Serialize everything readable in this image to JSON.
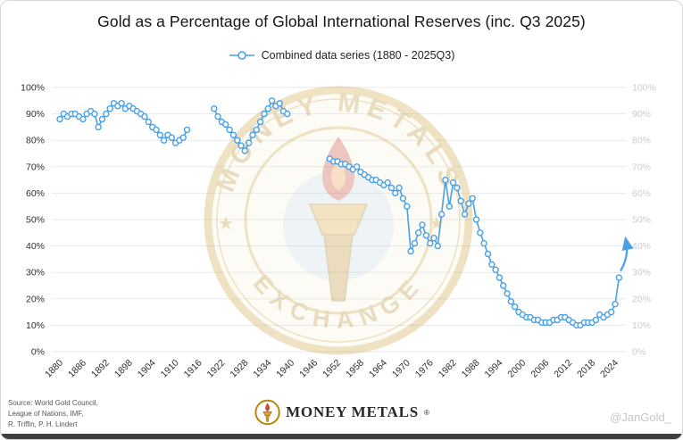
{
  "title": "Gold as a Percentage of Global International Reserves (inc. Q3 2025)",
  "legend": {
    "label": "Combined data series (1880 - 2025Q3)"
  },
  "watermark": {
    "top": "MONEY METALS",
    "bottom": "EXCHANGE",
    "star": "★"
  },
  "footer": {
    "source_lines": [
      "Source: World Gold Council,",
      "League of Nations, IMF,",
      "R. Triffin, P. H. Lindert"
    ],
    "brand": "MONEY METALS",
    "registered": "®",
    "handle": "@JanGold_"
  },
  "chart_data": {
    "type": "line",
    "title": "Gold as a Percentage of Global International Reserves (inc. Q3 2025)",
    "series_name": "Combined data series (1880 - 2025Q3)",
    "color": "#4aa0e6",
    "grid": true,
    "xlim": [
      1878,
      2028
    ],
    "ylim": [
      0,
      100
    ],
    "y_tick_step": 10,
    "y_tick_labels": [
      "0%",
      "10%",
      "20%",
      "30%",
      "40%",
      "50%",
      "60%",
      "70%",
      "80%",
      "90%",
      "100%"
    ],
    "x_ticks": [
      1880,
      1886,
      1892,
      1898,
      1904,
      1910,
      1916,
      1922,
      1928,
      1934,
      1940,
      1946,
      1952,
      1958,
      1964,
      1970,
      1976,
      1982,
      1988,
      1994,
      2000,
      2006,
      2012,
      2018,
      2024
    ],
    "segments": [
      [
        [
          1880,
          88
        ],
        [
          1881,
          90
        ],
        [
          1882,
          89
        ],
        [
          1883,
          90
        ],
        [
          1884,
          90
        ],
        [
          1885,
          89
        ],
        [
          1886,
          88
        ],
        [
          1887,
          90
        ],
        [
          1888,
          91
        ],
        [
          1889,
          90
        ],
        [
          1890,
          85
        ],
        [
          1891,
          88
        ],
        [
          1892,
          90
        ],
        [
          1893,
          92
        ],
        [
          1894,
          94
        ],
        [
          1895,
          93
        ],
        [
          1896,
          94
        ],
        [
          1897,
          92
        ],
        [
          1898,
          93
        ],
        [
          1899,
          92
        ],
        [
          1900,
          91
        ],
        [
          1901,
          90
        ],
        [
          1902,
          89
        ],
        [
          1903,
          87
        ],
        [
          1904,
          85
        ],
        [
          1905,
          84
        ],
        [
          1906,
          82
        ],
        [
          1907,
          80
        ],
        [
          1908,
          82
        ],
        [
          1909,
          81
        ],
        [
          1910,
          79
        ],
        [
          1911,
          80
        ],
        [
          1912,
          81
        ],
        [
          1913,
          84
        ]
      ],
      [
        [
          1920,
          92
        ],
        [
          1921,
          89
        ],
        [
          1922,
          87
        ],
        [
          1923,
          86
        ],
        [
          1924,
          84
        ],
        [
          1925,
          82
        ],
        [
          1926,
          80
        ],
        [
          1927,
          78
        ],
        [
          1928,
          76
        ],
        [
          1929,
          79
        ],
        [
          1930,
          82
        ],
        [
          1931,
          84
        ],
        [
          1932,
          87
        ],
        [
          1933,
          90
        ],
        [
          1934,
          92
        ],
        [
          1935,
          95
        ],
        [
          1936,
          93
        ],
        [
          1937,
          94
        ],
        [
          1938,
          91
        ],
        [
          1939,
          90
        ]
      ],
      [
        [
          1950,
          73
        ],
        [
          1951,
          72
        ],
        [
          1952,
          72
        ],
        [
          1953,
          71
        ],
        [
          1954,
          71
        ],
        [
          1955,
          70
        ],
        [
          1956,
          69
        ],
        [
          1957,
          70
        ],
        [
          1958,
          68
        ],
        [
          1959,
          67
        ],
        [
          1960,
          66
        ],
        [
          1961,
          65
        ],
        [
          1962,
          65
        ],
        [
          1963,
          64
        ],
        [
          1964,
          63
        ],
        [
          1965,
          64
        ],
        [
          1966,
          62
        ],
        [
          1967,
          60
        ],
        [
          1968,
          62
        ],
        [
          1969,
          58
        ],
        [
          1970,
          55
        ],
        [
          1971,
          38
        ],
        [
          1972,
          41
        ],
        [
          1973,
          45
        ],
        [
          1974,
          48
        ],
        [
          1975,
          44
        ],
        [
          1976,
          41
        ],
        [
          1977,
          43
        ],
        [
          1978,
          40
        ],
        [
          1979,
          52
        ],
        [
          1980,
          65
        ],
        [
          1981,
          55
        ],
        [
          1982,
          64
        ],
        [
          1983,
          62
        ],
        [
          1984,
          57
        ],
        [
          1985,
          52
        ],
        [
          1986,
          56
        ],
        [
          1987,
          58
        ],
        [
          1988,
          50
        ],
        [
          1989,
          45
        ],
        [
          1990,
          41
        ],
        [
          1991,
          37
        ],
        [
          1992,
          33
        ],
        [
          1993,
          31
        ],
        [
          1994,
          28
        ],
        [
          1995,
          25
        ],
        [
          1996,
          22
        ],
        [
          1997,
          19
        ],
        [
          1998,
          17
        ],
        [
          1999,
          15
        ],
        [
          2000,
          14
        ],
        [
          2001,
          13
        ],
        [
          2002,
          13
        ],
        [
          2003,
          12
        ],
        [
          2004,
          12
        ],
        [
          2005,
          11
        ],
        [
          2006,
          11
        ],
        [
          2007,
          11
        ],
        [
          2008,
          12
        ],
        [
          2009,
          12
        ],
        [
          2010,
          13
        ],
        [
          2011,
          13
        ],
        [
          2012,
          12
        ],
        [
          2013,
          11
        ],
        [
          2014,
          10
        ],
        [
          2015,
          10
        ],
        [
          2016,
          11
        ],
        [
          2017,
          11
        ],
        [
          2018,
          11
        ],
        [
          2019,
          12
        ],
        [
          2020,
          14
        ],
        [
          2021,
          13
        ],
        [
          2022,
          14
        ],
        [
          2023,
          15
        ],
        [
          2024,
          18
        ],
        [
          2025,
          28
        ]
      ]
    ],
    "arrow": {
      "from": [
        2025.4,
        30.5
      ],
      "to": [
        2026.9,
        41.5
      ]
    }
  }
}
